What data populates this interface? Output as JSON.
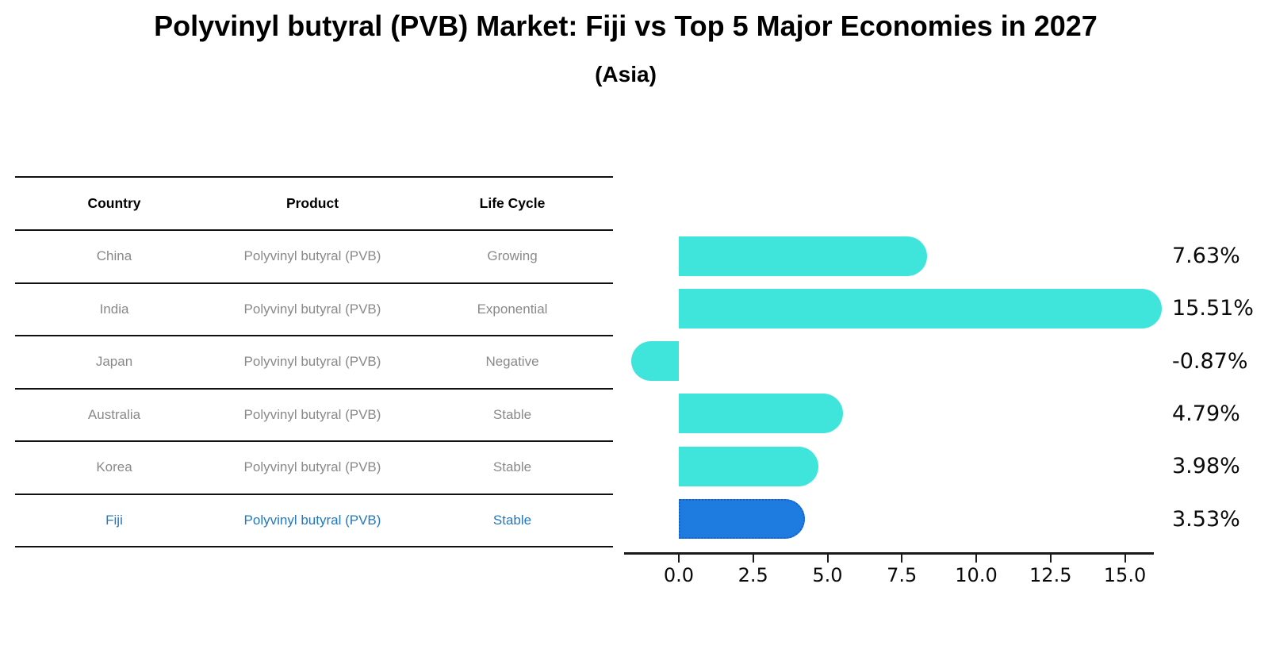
{
  "title": "Polyvinyl butyral (PVB) Market: Fiji vs Top 5 Major Economies in 2027",
  "subtitle": "(Asia)",
  "table": {
    "headers": [
      "Country",
      "Product",
      "Life Cycle"
    ],
    "rows": [
      {
        "country": "China",
        "product": "Polyvinyl butyral (PVB)",
        "life_cycle": "Growing",
        "highlighted": false
      },
      {
        "country": "India",
        "product": "Polyvinyl butyral (PVB)",
        "life_cycle": "Exponential",
        "highlighted": false
      },
      {
        "country": "Japan",
        "product": "Polyvinyl butyral (PVB)",
        "life_cycle": "Negative",
        "highlighted": false
      },
      {
        "country": "Australia",
        "product": "Polyvinyl butyral (PVB)",
        "life_cycle": "Stable",
        "highlighted": false
      },
      {
        "country": "Korea",
        "product": "Polyvinyl butyral (PVB)",
        "life_cycle": "Stable",
        "highlighted": false
      },
      {
        "country": "Fiji",
        "product": "Polyvinyl butyral (PVB)",
        "life_cycle": "Stable",
        "highlighted": true
      }
    ]
  },
  "chart_data": {
    "type": "bar",
    "orientation": "horizontal",
    "title": "Polyvinyl butyral (PVB) Market: Fiji vs Top 5 Major Economies in 2027 (Asia)",
    "categories": [
      "China",
      "India",
      "Japan",
      "Australia",
      "Korea",
      "Fiji"
    ],
    "values": [
      7.63,
      15.51,
      -0.87,
      4.79,
      3.98,
      3.53
    ],
    "value_labels": [
      "7.63%",
      "15.51%",
      "-0.87%",
      "4.79%",
      "3.98%",
      "3.53%"
    ],
    "highlight_index": 5,
    "x_tick_labels": [
      "0.0",
      "2.5",
      "5.0",
      "7.5",
      "10.0",
      "12.5",
      "15.0"
    ],
    "x_tick_values": [
      0,
      2.5,
      5,
      7.5,
      10,
      12.5,
      15
    ],
    "xlim": [
      -1.85,
      16.0
    ],
    "grid": false,
    "legend": false,
    "colors": {
      "default_bar": "#3FE4DB",
      "highlight_bar": "#1E7BE0",
      "highlight_bar_border": "#1A5ED0",
      "highlight_row_text": "#2478BE",
      "row_text": "#898989",
      "axis": "#1a1a1a",
      "label_text": "#0a0a0a"
    }
  }
}
